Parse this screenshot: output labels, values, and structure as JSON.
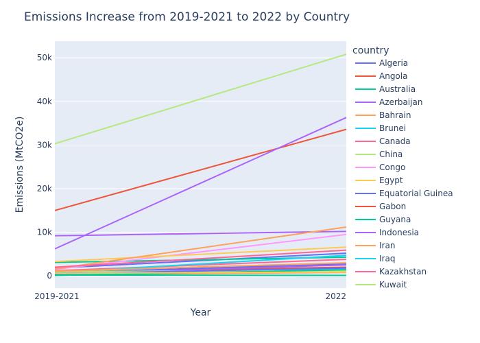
{
  "chart_data": {
    "type": "line",
    "title": "Emissions Increase from 2019-2021 to 2022 by Country",
    "xlabel": "Year",
    "ylabel": "Emissions (MtCO2e)",
    "categories": [
      "2019-2021",
      "2022"
    ],
    "ylim": [
      -2800,
      53800
    ],
    "yticks": [
      0,
      10000,
      20000,
      30000,
      40000,
      50000
    ],
    "ytick_labels": [
      "0",
      "10k",
      "20k",
      "30k",
      "40k",
      "50k"
    ],
    "legend_title": "country",
    "legend_position": "right",
    "grid": true,
    "series": [
      {
        "name": "Algeria",
        "color": "#636efa",
        "values": [
          1800,
          5200
        ]
      },
      {
        "name": "Angola",
        "color": "#EF553B",
        "values": [
          900,
          2000
        ]
      },
      {
        "name": "Australia",
        "color": "#00cc96",
        "values": [
          3100,
          4300
        ]
      },
      {
        "name": "Azerbaijan",
        "color": "#ab63fa",
        "values": [
          600,
          2500
        ]
      },
      {
        "name": "Bahrain",
        "color": "#FFA15A",
        "values": [
          300,
          800
        ]
      },
      {
        "name": "Brunei",
        "color": "#19d3f3",
        "values": [
          400,
          1500
        ]
      },
      {
        "name": "Canada",
        "color": "#FF6692",
        "values": [
          1200,
          3800
        ]
      },
      {
        "name": "China",
        "color": "#B6E880",
        "values": [
          30300,
          50800
        ]
      },
      {
        "name": "Congo",
        "color": "#FF97FF",
        "values": [
          1500,
          9500
        ]
      },
      {
        "name": "Egypt",
        "color": "#FECB52",
        "values": [
          3300,
          6600
        ]
      },
      {
        "name": "Equatorial Guinea",
        "color": "#636efa",
        "values": [
          700,
          2800
        ]
      },
      {
        "name": "Gabon",
        "color": "#EF553B",
        "values": [
          15000,
          33600
        ]
      },
      {
        "name": "Guyana",
        "color": "#00cc96",
        "values": [
          200,
          100
        ]
      },
      {
        "name": "Indonesia",
        "color": "#ab63fa",
        "values": [
          9200,
          10200
        ]
      },
      {
        "name": "Iran",
        "color": "#FFA15A",
        "values": [
          1600,
          11200
        ]
      },
      {
        "name": "Iraq",
        "color": "#19d3f3",
        "values": [
          800,
          4700
        ]
      },
      {
        "name": "Kazakhstan",
        "color": "#FF6692",
        "values": [
          2000,
          5900
        ]
      },
      {
        "name": "Kuwait",
        "color": "#B6E880",
        "values": [
          1000,
          1200
        ]
      },
      {
        "name": "Azerbaijan",
        "color": "#ab63fa",
        "values": [
          6200,
          36300
        ]
      },
      {
        "name": "Bahrain",
        "color": "#FFA15A",
        "values": [
          1100,
          3000
        ]
      },
      {
        "name": "Algeria",
        "color": "#636efa",
        "values": [
          500,
          1800
        ]
      },
      {
        "name": "Australia",
        "color": "#00cc96",
        "values": [
          100,
          1400
        ]
      },
      {
        "name": "Egypt",
        "color": "#FECB52",
        "values": [
          600,
          900
        ]
      }
    ]
  }
}
